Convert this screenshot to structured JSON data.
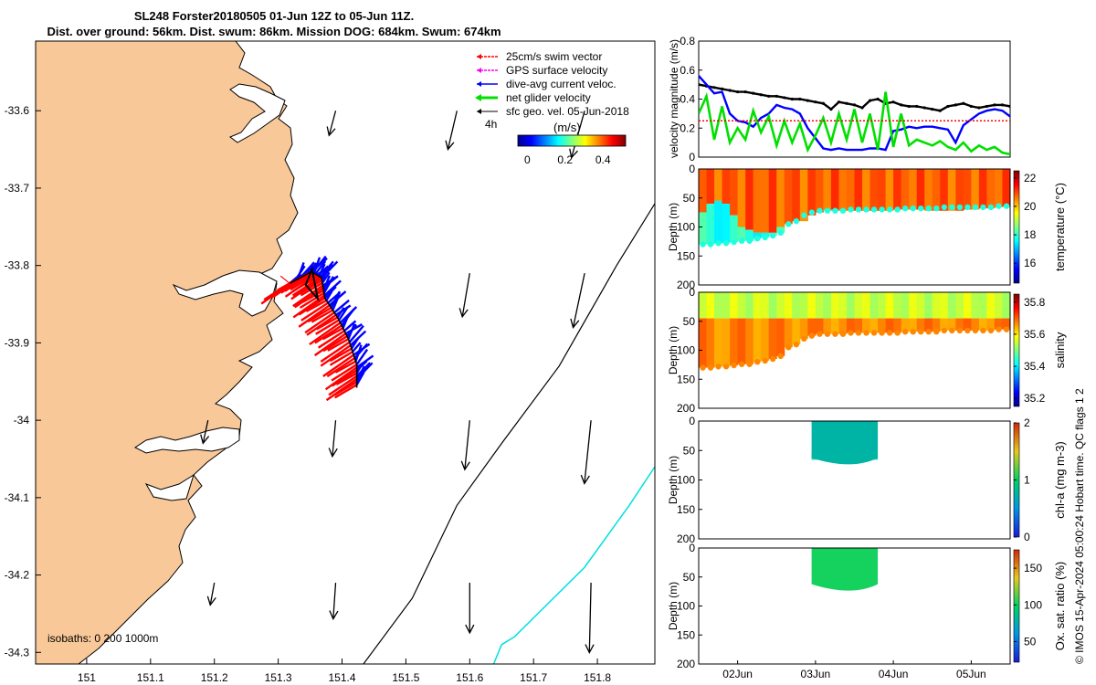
{
  "header": {
    "title_line1": "SL248 Forster20180505 01-Jun 12Z to 05-Jun 11Z.",
    "title_line2": "Dist. over ground: 56km. Dist. swum: 86km. Mission DOG: 684km. Swum: 674km"
  },
  "colors": {
    "land": "#f9c898",
    "swim": "#ff0000",
    "gps": "#ff00ff",
    "current": "#0000ff",
    "net": "#00e000",
    "sfc": "#000000",
    "isobath_200": "#000000",
    "isobath_1000": "#00e0e0"
  },
  "chart_data": [
    {
      "type": "map",
      "name": "track-map",
      "xlabel": "",
      "ylabel": "",
      "xlim": [
        150.92,
        151.89
      ],
      "ylim": [
        -34.315,
        -33.51
      ],
      "xticks": [
        "151",
        "151.1",
        "151.2",
        "151.3",
        "151.4",
        "151.5",
        "151.6",
        "151.7",
        "151.8"
      ],
      "yticks": [
        "-33.6",
        "-33.7",
        "-33.8",
        "-33.9",
        "-34",
        "-34.1",
        "-34.2",
        "-34.3"
      ],
      "legend": {
        "position": "top-right",
        "entries": [
          "25cm/s swim vector",
          "GPS surface velocity",
          "dive-avg current veloc.",
          "net glider velocity",
          "sfc geo. vel. 05-Jun-2018"
        ],
        "scale_label": "4h"
      },
      "colorbar": {
        "label": "(m/s)",
        "ticks": [
          "0",
          "0.2",
          "0.4"
        ],
        "range": [
          -0.05,
          0.52
        ]
      },
      "isobaths_label": "isobaths: 0   200  1000m",
      "sfc_vectors": [
        {
          "lon": 151.39,
          "lat": -33.6,
          "u": -0.08,
          "v": -0.3
        },
        {
          "lon": 151.58,
          "lat": -33.6,
          "u": -0.11,
          "v": -0.47
        },
        {
          "lon": 151.78,
          "lat": -33.6,
          "u": -0.16,
          "v": -0.57
        },
        {
          "lon": 151.6,
          "lat": -33.81,
          "u": -0.09,
          "v": -0.53
        },
        {
          "lon": 151.78,
          "lat": -33.81,
          "u": -0.14,
          "v": -0.66
        },
        {
          "lon": 151.19,
          "lat": -34.0,
          "u": -0.06,
          "v": -0.28
        },
        {
          "lon": 151.39,
          "lat": -34.0,
          "u": -0.04,
          "v": -0.44
        },
        {
          "lon": 151.6,
          "lat": -34.0,
          "u": -0.06,
          "v": -0.6
        },
        {
          "lon": 151.79,
          "lat": -34.0,
          "u": -0.08,
          "v": -0.77
        },
        {
          "lon": 151.2,
          "lat": -34.21,
          "u": -0.05,
          "v": -0.27
        },
        {
          "lon": 151.39,
          "lat": -34.21,
          "u": -0.03,
          "v": -0.44
        },
        {
          "lon": 151.6,
          "lat": -34.21,
          "u": 0.0,
          "v": -0.61
        },
        {
          "lon": 151.79,
          "lat": -34.21,
          "u": -0.02,
          "v": -0.85
        }
      ],
      "isobath_200": [
        [
          151.42,
          -34.33
        ],
        [
          151.51,
          -34.23
        ],
        [
          151.58,
          -34.11
        ],
        [
          151.65,
          -34.03
        ],
        [
          151.74,
          -33.93
        ],
        [
          151.83,
          -33.8
        ],
        [
          151.89,
          -33.72
        ]
      ],
      "isobath_1000": [
        [
          151.63,
          -34.33
        ],
        [
          151.65,
          -34.29
        ],
        [
          151.67,
          -34.28
        ],
        [
          151.78,
          -34.19
        ],
        [
          151.85,
          -34.11
        ],
        [
          151.89,
          -34.06
        ]
      ],
      "glider_track": [
        [
          151.318,
          -33.823
        ],
        [
          151.352,
          -33.808
        ],
        [
          151.368,
          -33.816
        ],
        [
          151.373,
          -33.842
        ],
        [
          151.393,
          -33.867
        ],
        [
          151.41,
          -33.895
        ],
        [
          151.423,
          -33.928
        ],
        [
          151.423,
          -33.958
        ]
      ]
    },
    {
      "type": "line",
      "name": "velocity-panel",
      "ylabel": "velocity magnitude (m/s)",
      "ylim": [
        0,
        0.8
      ],
      "yticks": [
        "0",
        "0.2",
        "0.4",
        "0.6",
        "0.8"
      ],
      "x": [
        0,
        0.1,
        0.2,
        0.3,
        0.4,
        0.5,
        0.6,
        0.7,
        0.8,
        0.9,
        1.0,
        1.1,
        1.2,
        1.3,
        1.4,
        1.5,
        1.6,
        1.7,
        1.8,
        1.9,
        2.0,
        2.1,
        2.2,
        2.3,
        2.4,
        2.5,
        2.6,
        2.7,
        2.8,
        2.9,
        3.0,
        3.1,
        3.2,
        3.3,
        3.4,
        3.5,
        3.6,
        3.7,
        3.8,
        3.9,
        4.0
      ],
      "series": [
        {
          "name": "sfc geo. speed",
          "color": "#000000",
          "values": [
            0.5,
            0.49,
            0.48,
            0.47,
            0.46,
            0.45,
            0.45,
            0.44,
            0.43,
            0.42,
            0.42,
            0.41,
            0.4,
            0.4,
            0.39,
            0.38,
            0.37,
            0.33,
            0.38,
            0.37,
            0.36,
            0.34,
            0.39,
            0.4,
            0.37,
            0.38,
            0.36,
            0.35,
            0.35,
            0.34,
            0.33,
            0.32,
            0.35,
            0.36,
            0.37,
            0.35,
            0.34,
            0.35,
            0.36,
            0.36,
            0.35
          ]
        },
        {
          "name": "dive-avg current",
          "color": "#0000ff",
          "values": [
            0.56,
            0.5,
            0.44,
            0.45,
            0.3,
            0.25,
            0.24,
            0.21,
            0.27,
            0.3,
            0.36,
            0.34,
            0.33,
            0.3,
            0.2,
            0.13,
            0.06,
            0.05,
            0.06,
            0.05,
            0.05,
            0.05,
            0.06,
            0.06,
            0.05,
            0.18,
            0.19,
            0.21,
            0.2,
            0.21,
            0.21,
            0.2,
            0.19,
            0.1,
            0.22,
            0.26,
            0.3,
            0.32,
            0.33,
            0.32,
            0.28
          ]
        },
        {
          "name": "net glider velocity",
          "color": "#00e000",
          "values": [
            0.3,
            0.42,
            0.12,
            0.35,
            0.1,
            0.2,
            0.12,
            0.32,
            0.17,
            0.28,
            0.08,
            0.25,
            0.1,
            0.23,
            0.05,
            0.15,
            0.27,
            0.1,
            0.3,
            0.12,
            0.33,
            0.1,
            0.3,
            0.05,
            0.45,
            0.07,
            0.3,
            0.08,
            0.12,
            0.1,
            0.08,
            0.11,
            0.07,
            0.05,
            0.1,
            0.04,
            0.08,
            0.05,
            0.07,
            0.03,
            0.02
          ]
        },
        {
          "name": "swim speed 25cm/s",
          "color": "#ff0000",
          "values": [
            0.25,
            0.25,
            0.25,
            0.25,
            0.25,
            0.25,
            0.25,
            0.25,
            0.25,
            0.25,
            0.25,
            0.25,
            0.25,
            0.25,
            0.25,
            0.25,
            0.25,
            0.25,
            0.25,
            0.25,
            0.25,
            0.25,
            0.25,
            0.25,
            0.25,
            0.25,
            0.25,
            0.25,
            0.25,
            0.25,
            0.25,
            0.25,
            0.25,
            0.25,
            0.25,
            0.25,
            0.25,
            0.25,
            0.25,
            0.25,
            0.25
          ]
        }
      ]
    },
    {
      "type": "heatmap",
      "name": "temperature-panel",
      "ylabel": "Depth (m)",
      "ylim": [
        0,
        200
      ],
      "yticks": [
        "0",
        "50",
        "100",
        "150",
        "200"
      ],
      "colorbar": {
        "label": "temperature (°C)",
        "ticks": [
          "16",
          "18",
          "20",
          "22"
        ],
        "range": [
          14.6,
          22.5
        ]
      },
      "surface_value": 20.8,
      "deep_value": 17.8,
      "mld_depth": [
        75,
        60,
        55,
        60,
        80,
        100,
        105,
        110,
        110,
        110,
        100,
        95,
        90,
        90,
        80,
        75,
        70,
        70,
        72,
        72,
        72,
        72,
        72,
        72,
        72,
        70,
        70,
        70,
        70,
        72,
        72,
        72,
        72,
        72,
        70,
        70,
        68,
        68,
        66,
        65,
        65
      ],
      "bottom_depth": [
        130,
        130,
        128,
        128,
        126,
        124,
        124,
        120,
        118,
        115,
        110,
        95,
        90,
        80,
        75,
        72,
        72,
        72,
        72,
        70,
        70,
        70,
        70,
        70,
        70,
        70,
        68,
        68,
        68,
        68,
        68,
        66,
        66,
        66,
        66,
        66,
        66,
        66,
        64,
        64,
        64
      ]
    },
    {
      "type": "heatmap",
      "name": "salinity-panel",
      "ylabel": "Depth (m)",
      "ylim": [
        0,
        200
      ],
      "yticks": [
        "0",
        "50",
        "100",
        "150",
        "200"
      ],
      "colorbar": {
        "label": "salinity",
        "ticks": [
          "35.2",
          "35.4",
          "35.6",
          "35.8"
        ],
        "range": [
          35.15,
          35.85
        ]
      },
      "surface_value": 35.55,
      "deep_value": 35.67,
      "bottom_depth": [
        130,
        130,
        128,
        128,
        126,
        124,
        124,
        120,
        118,
        115,
        110,
        95,
        90,
        80,
        75,
        72,
        72,
        72,
        72,
        70,
        70,
        70,
        70,
        70,
        70,
        70,
        68,
        68,
        68,
        68,
        68,
        66,
        66,
        66,
        66,
        66,
        66,
        66,
        64,
        64,
        64
      ]
    },
    {
      "type": "heatmap",
      "name": "chla-panel",
      "ylabel": "Depth (m)",
      "ylim": [
        0,
        200
      ],
      "yticks": [
        "0",
        "50",
        "100",
        "150",
        "200"
      ],
      "colorbar": {
        "label": "chl-a (mg m-3)",
        "ticks": [
          "0",
          "1",
          "2"
        ],
        "range": [
          0,
          2
        ]
      },
      "t_range": [
        1.45,
        2.3
      ],
      "depth_range": [
        0,
        75
      ],
      "value": 0.75
    },
    {
      "type": "heatmap",
      "name": "oxygen-panel",
      "ylabel": "Depth (m)",
      "ylim": [
        0,
        200
      ],
      "yticks": [
        "0",
        "50",
        "100",
        "150",
        "200"
      ],
      "xticks": [
        "02Jun",
        "03Jun",
        "04Jun",
        "05Jun"
      ],
      "colorbar": {
        "label": "Ox. sat. ratio (%)",
        "ticks": [
          "50",
          "100",
          "150"
        ],
        "range": [
          22,
          175
        ]
      },
      "t_range": [
        1.45,
        2.3
      ],
      "depth_range": [
        0,
        75
      ],
      "value": 102
    }
  ],
  "footer": {
    "credit": "© IMOS 15-Apr-2024 05:00:24 Hobart time. QC flags 1  2"
  }
}
